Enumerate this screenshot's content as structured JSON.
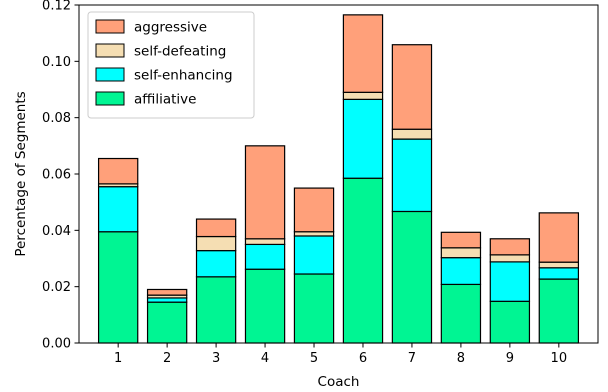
{
  "chart_data": {
    "type": "bar",
    "stacked": true,
    "categories": [
      "1",
      "2",
      "3",
      "4",
      "5",
      "6",
      "7",
      "8",
      "9",
      "10"
    ],
    "series": [
      {
        "name": "affiliative",
        "color": "#00f593",
        "values": [
          0.0395,
          0.0145,
          0.0235,
          0.0262,
          0.0245,
          0.0585,
          0.0467,
          0.0208,
          0.0148,
          0.0227
        ]
      },
      {
        "name": "self-enhancing",
        "color": "#00ffff",
        "values": [
          0.016,
          0.0015,
          0.0093,
          0.0088,
          0.0135,
          0.028,
          0.0257,
          0.0095,
          0.014,
          0.004
        ]
      },
      {
        "name": "self-defeating",
        "color": "#f5deb3",
        "values": [
          0.001,
          0.001,
          0.005,
          0.002,
          0.0015,
          0.0025,
          0.0035,
          0.0035,
          0.0025,
          0.002
        ]
      },
      {
        "name": "aggressive",
        "color": "#ffa07a",
        "values": [
          0.009,
          0.002,
          0.0062,
          0.033,
          0.0155,
          0.0275,
          0.03,
          0.0055,
          0.0057,
          0.0175
        ]
      }
    ],
    "legend_order": [
      "aggressive",
      "self-defeating",
      "self-enhancing",
      "affiliative"
    ],
    "xlabel": "Coach",
    "ylabel": "Percentage of Segments",
    "ylim": [
      0,
      0.12
    ],
    "yticks": [
      0.0,
      0.02,
      0.04,
      0.06,
      0.08,
      0.1,
      0.12
    ],
    "ytick_labels": [
      "0.00",
      "0.02",
      "0.04",
      "0.06",
      "0.08",
      "0.10",
      "0.12"
    ],
    "grid": false,
    "legend_position": "top-left"
  }
}
